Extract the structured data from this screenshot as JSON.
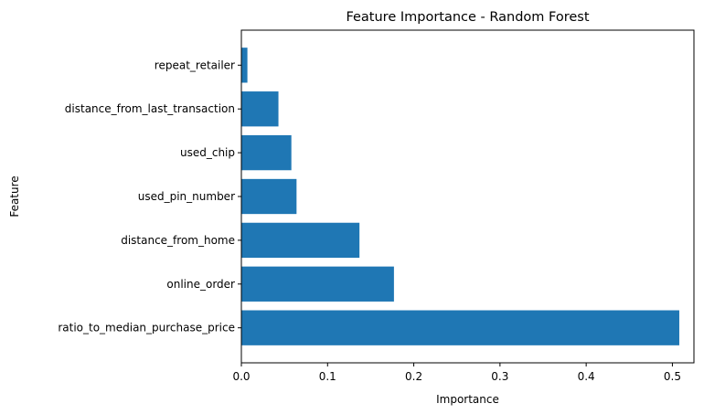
{
  "chart_data": {
    "type": "bar",
    "orientation": "horizontal",
    "title": "Feature Importance - Random Forest",
    "xlabel": "Importance",
    "ylabel": "Feature",
    "categories": [
      "ratio_to_median_purchase_price",
      "online_order",
      "distance_from_home",
      "used_pin_number",
      "used_chip",
      "distance_from_last_transaction",
      "repeat_retailer"
    ],
    "values": [
      0.508,
      0.177,
      0.137,
      0.064,
      0.058,
      0.043,
      0.007
    ],
    "xlim": [
      0,
      0.525
    ],
    "xticks": [
      0,
      0.1,
      0.2,
      0.3,
      0.4,
      0.5
    ],
    "xtick_labels": [
      "0.0",
      "0.1",
      "0.2",
      "0.3",
      "0.4",
      "0.5"
    ],
    "grid": false,
    "bar_color": "#1f77b4"
  }
}
